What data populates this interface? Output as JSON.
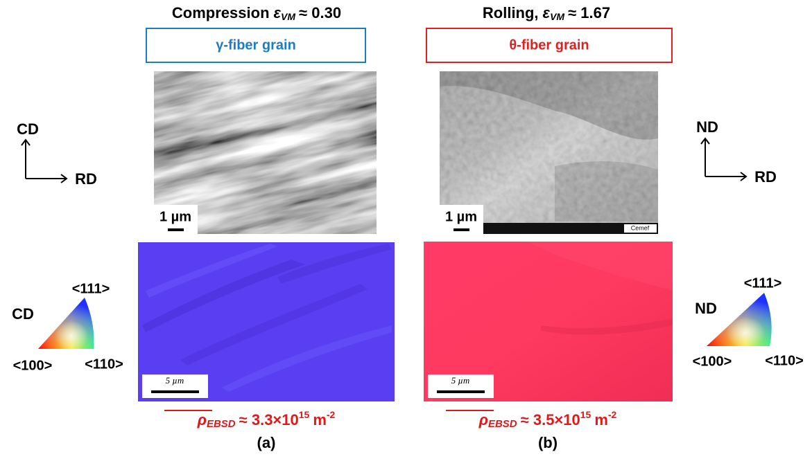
{
  "panels": [
    {
      "title": {
        "text": "Compression",
        "symbol": "ε",
        "subscript": "VM",
        "value": "≈ 0.30"
      },
      "label": "γ-fiber grain",
      "sem_scale": "1 µm",
      "ebsd_scale": "5 µm",
      "density": {
        "symbol": "ρ",
        "subscript": "EBSD",
        "value": "≈ 3.3×10",
        "exponent": "15",
        "unit": "m",
        "unit_exponent": "-2"
      },
      "caption": "(a)",
      "axes": {
        "vertical": "CD",
        "horizontal": "RD"
      },
      "ipf": {
        "direction": "CD",
        "top": "<111>",
        "left": "<100>",
        "right": "<110>"
      }
    },
    {
      "title": {
        "text": "Rolling,",
        "symbol": "ε",
        "subscript": "VM",
        "value": "≈ 1.67"
      },
      "label": "θ-fiber grain",
      "sem_scale": "1 µm",
      "ebsd_scale": "5 µm",
      "density": {
        "symbol": "ρ",
        "subscript": "EBSD",
        "value": "≈ 3.5×10",
        "exponent": "15",
        "unit": "m",
        "unit_exponent": "-2"
      },
      "caption": "(b)",
      "axes": {
        "vertical": "ND",
        "horizontal": "RD"
      },
      "ipf": {
        "direction": "ND",
        "top": "<111>",
        "left": "<100>",
        "right": "<110>"
      }
    }
  ]
}
